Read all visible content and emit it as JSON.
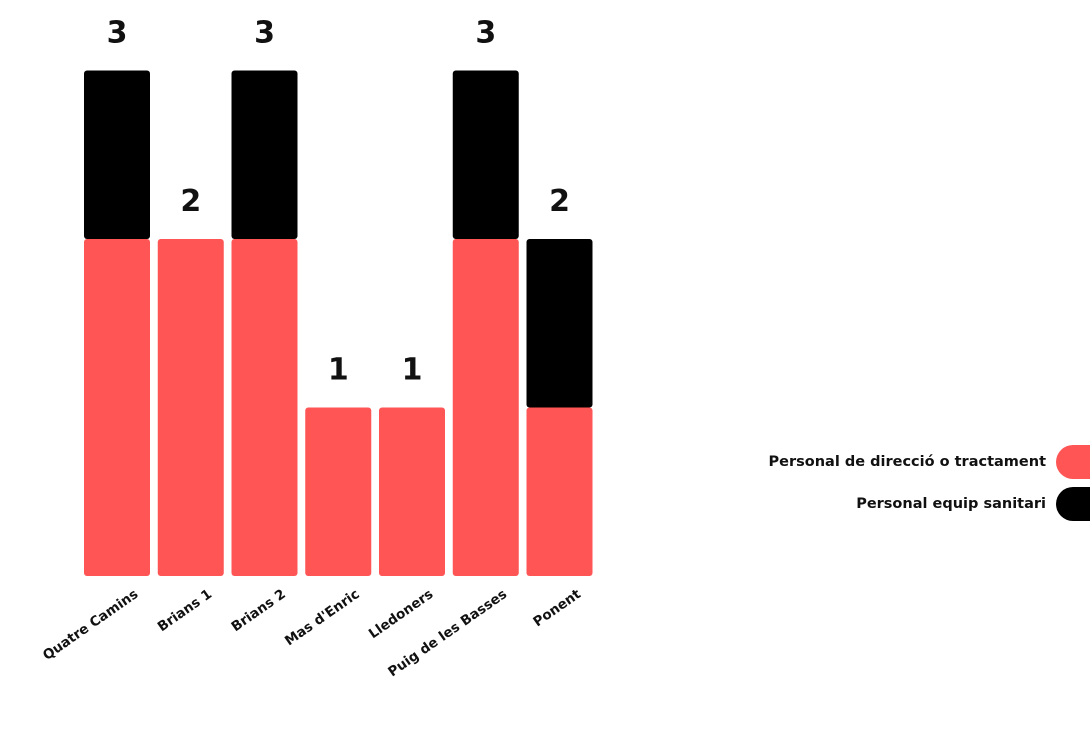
{
  "chart_data": {
    "type": "bar",
    "stacked": true,
    "categories": [
      "Quatre Camins",
      "Brians 1",
      "Brians 2",
      "Mas d'Enric",
      "Lledoners",
      "Puig de les Basses",
      "Ponent"
    ],
    "series": [
      {
        "name": "Personal de direcció o tractament",
        "values": [
          2,
          2,
          2,
          1,
          1,
          2,
          1
        ],
        "color": "#ff5555"
      },
      {
        "name": "Personal equip sanitari",
        "values": [
          1,
          0,
          1,
          0,
          0,
          1,
          1
        ],
        "color": "#000000"
      }
    ],
    "totals": [
      "3",
      "2",
      "3",
      "1",
      "1",
      "3",
      "2"
    ],
    "ylim": [
      0,
      3
    ],
    "grid": false,
    "legend_position": "right"
  }
}
